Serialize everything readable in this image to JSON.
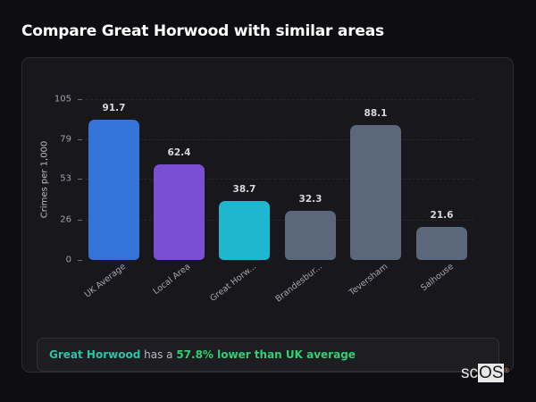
{
  "title": "Compare Great Horwood with similar areas",
  "chart_data": {
    "type": "bar",
    "title": "Compare Great Horwood with similar areas",
    "xlabel": "",
    "ylabel": "Crimes per 1,000",
    "ylim": [
      0,
      105
    ],
    "yticks": [
      0,
      26,
      53,
      79,
      105
    ],
    "grid": true,
    "legend": null,
    "categories": [
      "UK Average",
      "Local Area",
      "Great Horw...",
      "Brandesbur...",
      "Teversham",
      "Salhouse"
    ],
    "values": [
      91.7,
      62.4,
      38.7,
      32.3,
      88.1,
      21.6
    ],
    "value_labels": [
      "91.7",
      "62.4",
      "38.7",
      "32.3",
      "88.1",
      "21.6"
    ],
    "colors": [
      "#3474d9",
      "#7a4fd4",
      "#1fb6cf",
      "#5b677a",
      "#5b677a",
      "#5b677a"
    ]
  },
  "insight": {
    "area": "Great Horwood",
    "middle": " has a ",
    "stat": "57.8% lower than UK average"
  },
  "watermark": {
    "prefix": "sc",
    "highlight": "OS",
    "mark": "®"
  }
}
